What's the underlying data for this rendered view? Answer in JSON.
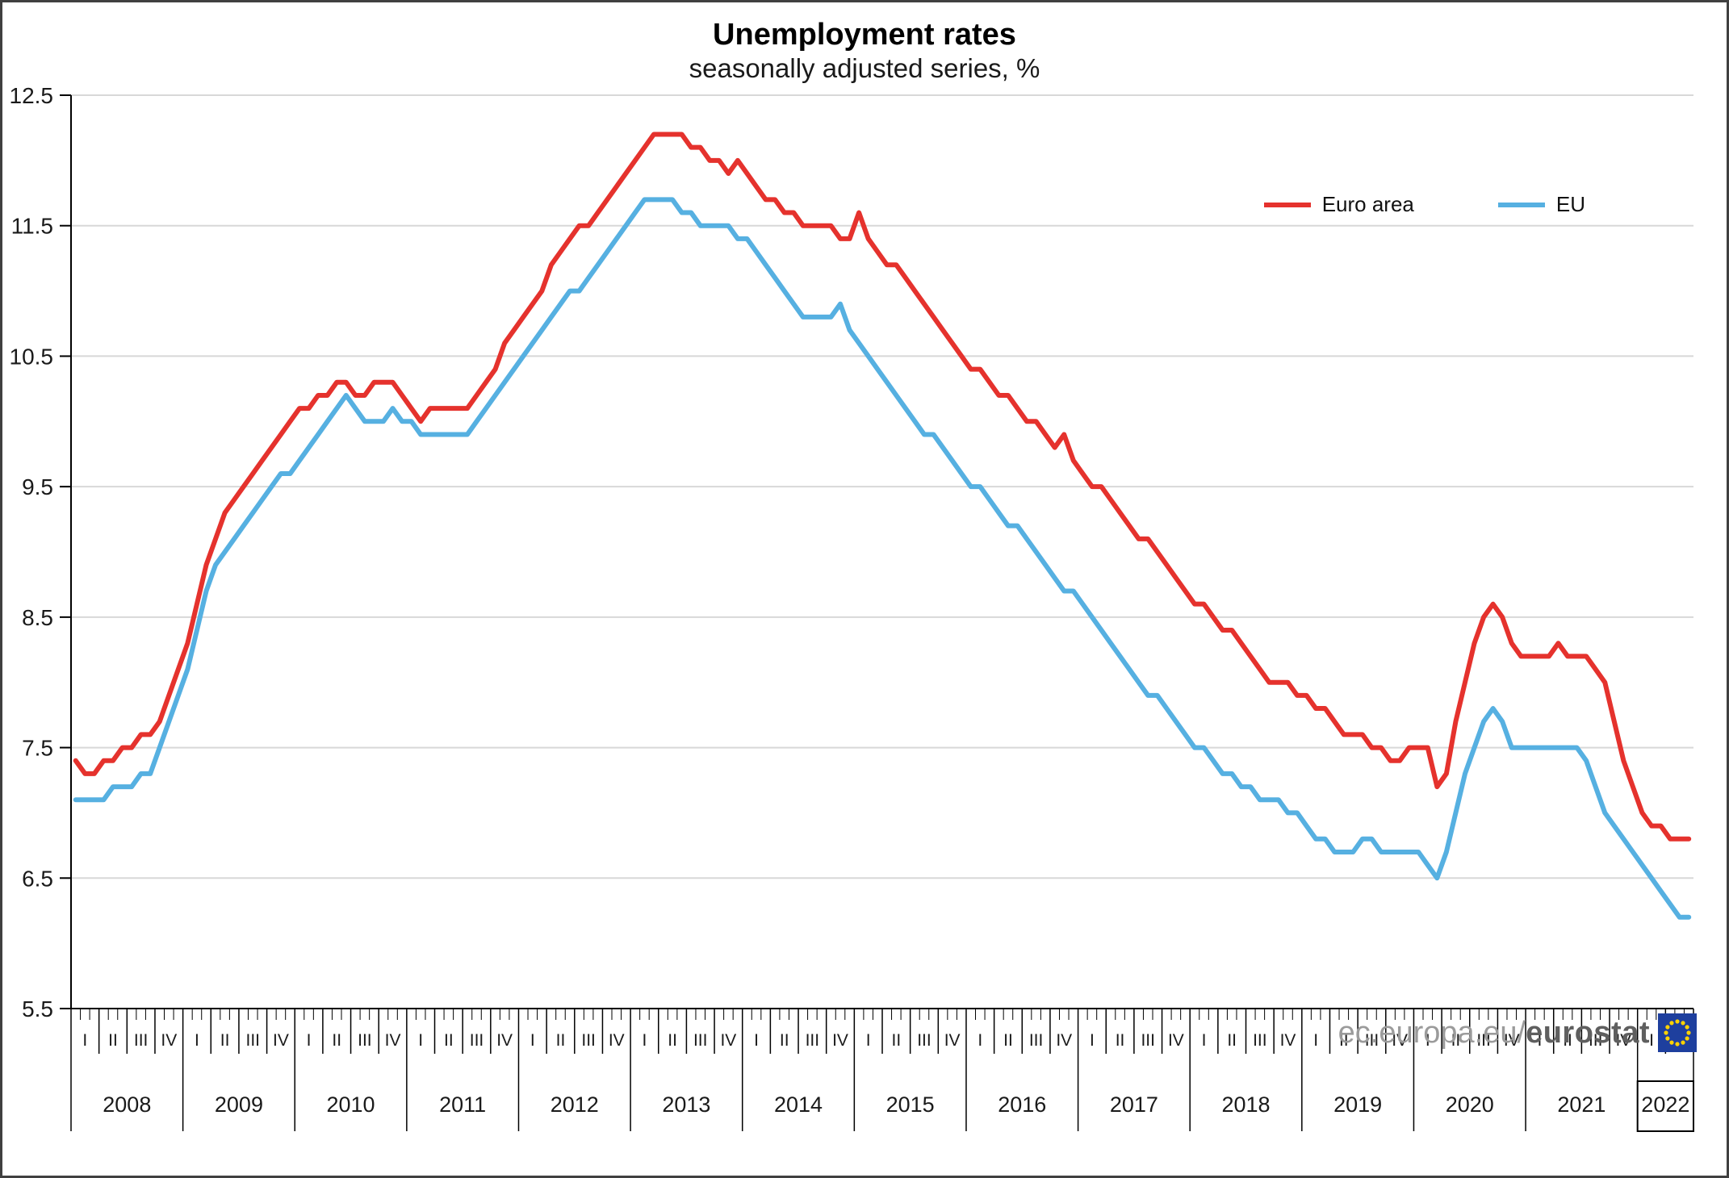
{
  "chart_data": {
    "type": "line",
    "title": "Unemployment rates",
    "subtitle": "seasonally adjusted series, %",
    "ylim": [
      5.5,
      12.5
    ],
    "y_ticks": [
      5.5,
      6.5,
      7.5,
      8.5,
      9.5,
      10.5,
      11.5,
      12.5
    ],
    "grid": "horizontal",
    "legend_position": "top-right",
    "quarter_labels": [
      "I",
      "II",
      "III",
      "IV"
    ],
    "years": [
      "2008",
      "2009",
      "2010",
      "2011",
      "2012",
      "2013",
      "2014",
      "2015",
      "2016",
      "2017",
      "2018",
      "2019",
      "2020",
      "2021",
      "2022"
    ],
    "last_year_quarters": 2,
    "colors": {
      "grid": "#d8d8d8",
      "axis": "#000000",
      "text": "#1a1a1a"
    },
    "series": [
      {
        "name": "Euro area",
        "color": "#e5322d",
        "values": [
          7.4,
          7.3,
          7.3,
          7.4,
          7.4,
          7.5,
          7.5,
          7.6,
          7.6,
          7.7,
          7.9,
          8.1,
          8.3,
          8.6,
          8.9,
          9.1,
          9.3,
          9.4,
          9.5,
          9.6,
          9.7,
          9.8,
          9.9,
          10.0,
          10.1,
          10.1,
          10.2,
          10.2,
          10.3,
          10.3,
          10.2,
          10.2,
          10.3,
          10.3,
          10.3,
          10.2,
          10.1,
          10.0,
          10.1,
          10.1,
          10.1,
          10.1,
          10.1,
          10.2,
          10.3,
          10.4,
          10.6,
          10.7,
          10.8,
          10.9,
          11.0,
          11.2,
          11.3,
          11.4,
          11.5,
          11.5,
          11.6,
          11.7,
          11.8,
          11.9,
          12.0,
          12.1,
          12.2,
          12.2,
          12.2,
          12.2,
          12.1,
          12.1,
          12.0,
          12.0,
          11.9,
          12.0,
          11.9,
          11.8,
          11.7,
          11.7,
          11.6,
          11.6,
          11.5,
          11.5,
          11.5,
          11.5,
          11.4,
          11.4,
          11.6,
          11.4,
          11.3,
          11.2,
          11.2,
          11.1,
          11.0,
          10.9,
          10.8,
          10.7,
          10.6,
          10.5,
          10.4,
          10.4,
          10.3,
          10.2,
          10.2,
          10.1,
          10.0,
          10.0,
          9.9,
          9.8,
          9.9,
          9.7,
          9.6,
          9.5,
          9.5,
          9.4,
          9.3,
          9.2,
          9.1,
          9.1,
          9.0,
          8.9,
          8.8,
          8.7,
          8.6,
          8.6,
          8.5,
          8.4,
          8.4,
          8.3,
          8.2,
          8.1,
          8.0,
          8.0,
          8.0,
          7.9,
          7.9,
          7.8,
          7.8,
          7.7,
          7.6,
          7.6,
          7.6,
          7.5,
          7.5,
          7.4,
          7.4,
          7.5,
          7.5,
          7.5,
          7.2,
          7.3,
          7.7,
          8.0,
          8.3,
          8.5,
          8.6,
          8.5,
          8.3,
          8.2,
          8.2,
          8.2,
          8.2,
          8.3,
          8.2,
          8.2,
          8.2,
          8.1,
          8.0,
          7.7,
          7.4,
          7.2,
          7.0,
          6.9,
          6.9,
          6.8,
          6.8,
          6.8
        ]
      },
      {
        "name": "EU",
        "color": "#56b0e1",
        "values": [
          7.1,
          7.1,
          7.1,
          7.1,
          7.2,
          7.2,
          7.2,
          7.3,
          7.3,
          7.5,
          7.7,
          7.9,
          8.1,
          8.4,
          8.7,
          8.9,
          9.0,
          9.1,
          9.2,
          9.3,
          9.4,
          9.5,
          9.6,
          9.6,
          9.7,
          9.8,
          9.9,
          10.0,
          10.1,
          10.2,
          10.1,
          10.0,
          10.0,
          10.0,
          10.1,
          10.0,
          10.0,
          9.9,
          9.9,
          9.9,
          9.9,
          9.9,
          9.9,
          10.0,
          10.1,
          10.2,
          10.3,
          10.4,
          10.5,
          10.6,
          10.7,
          10.8,
          10.9,
          11.0,
          11.0,
          11.1,
          11.2,
          11.3,
          11.4,
          11.5,
          11.6,
          11.7,
          11.7,
          11.7,
          11.7,
          11.6,
          11.6,
          11.5,
          11.5,
          11.5,
          11.5,
          11.4,
          11.4,
          11.3,
          11.2,
          11.1,
          11.0,
          10.9,
          10.8,
          10.8,
          10.8,
          10.8,
          10.9,
          10.7,
          10.6,
          10.5,
          10.4,
          10.3,
          10.2,
          10.1,
          10.0,
          9.9,
          9.9,
          9.8,
          9.7,
          9.6,
          9.5,
          9.5,
          9.4,
          9.3,
          9.2,
          9.2,
          9.1,
          9.0,
          8.9,
          8.8,
          8.7,
          8.7,
          8.6,
          8.5,
          8.4,
          8.3,
          8.2,
          8.1,
          8.0,
          7.9,
          7.9,
          7.8,
          7.7,
          7.6,
          7.5,
          7.5,
          7.4,
          7.3,
          7.3,
          7.2,
          7.2,
          7.1,
          7.1,
          7.1,
          7.0,
          7.0,
          6.9,
          6.8,
          6.8,
          6.7,
          6.7,
          6.7,
          6.8,
          6.8,
          6.7,
          6.7,
          6.7,
          6.7,
          6.7,
          6.6,
          6.5,
          6.7,
          7.0,
          7.3,
          7.5,
          7.7,
          7.8,
          7.7,
          7.5,
          7.5,
          7.5,
          7.5,
          7.5,
          7.5,
          7.5,
          7.5,
          7.4,
          7.2,
          7.0,
          6.9,
          6.8,
          6.7,
          6.6,
          6.5,
          6.4,
          6.3,
          6.2,
          6.2
        ]
      }
    ]
  },
  "watermark": {
    "prefix": "ec.europa.eu/",
    "brand": "eurostat",
    "flag_colors": {
      "field": "#1e3f9e",
      "stars": "#ffd200"
    }
  }
}
